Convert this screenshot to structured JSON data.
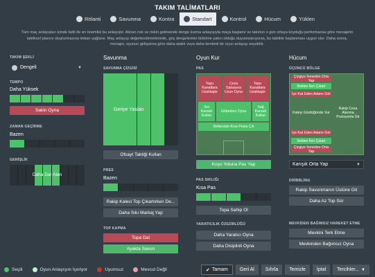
{
  "title": "TAKIM TALİMATLARI",
  "tabs": [
    {
      "label": "Rölanti",
      "icon": "gear-icon"
    },
    {
      "label": "Savunma",
      "icon": "shield-icon"
    },
    {
      "label": "Kontra",
      "icon": "arrows-icon"
    },
    {
      "label": "Standart",
      "icon": "target-icon",
      "active": true
    },
    {
      "label": "Kontrol",
      "icon": "ball-icon"
    },
    {
      "label": "Hücum",
      "icon": "sword-icon"
    },
    {
      "label": "Yüklen",
      "icon": "attack-icon"
    }
  ],
  "intro": "Tüm maç anlayışları içinde belli de en önemlisi bu anlayıştır. Alınan risk ve riskin getirisinde denge kurma anlayışıyla maça başlanır ve takımın o gün ortaya koyduğu performansa göre menajerin taktiksel planını oluşturmasına imkan sağlanır. Maç anlayışı değerlendirmelerinde, güç dengelerinin birbirine yakın olduğu duyumsanıyorsa, bu taktikle başlanması uygun olur. Daha sonra, menajer, oyunun gidişatına göre daha ataklı veya daha temkinli bir oyun anlayışı seçebilir.",
  "left": {
    "shape_label": "TAKIM ŞEKLİ",
    "shape_value": "Dengeli",
    "tempo_label": "TEMPO",
    "tempo_value": "Daha Yüksek",
    "tempo_level": 0.72,
    "tempo_button": "Sakin Oyna",
    "time_label": "ZAMAN GEÇİRME",
    "time_value": "Bazen",
    "width_label": "GENİŞLİK",
    "width_value": "Daha Dar Alan"
  },
  "defense": {
    "title": "Savunma",
    "line_label": "SAVUNMA ÇİZGİSİ",
    "line_value": "Geriye Yaslan",
    "offside_button": "Ofsayt Taktiği Kullan",
    "press_label": "PRES",
    "press_value": "Bazen",
    "press_level": 0.2,
    "press_btn1": "Rakip Kaleci Top Çıkartırken De...",
    "press_btn2": "Daha Sıkı Markaj Yap",
    "tackle_label": "TOP KAPMA",
    "tackle_btn1": "Topa Dal",
    "tackle_btn2": "Ayakta Savun"
  },
  "buildup": {
    "title": "Oyun Kur",
    "pass_label": "PAS",
    "zones": {
      "z1": "Topu Kanatlara Uzaklaştır",
      "z2": "Ceza Sahasına Uzun Oyna",
      "z3": "Topu Kanatlara Uzaklaştır",
      "z4": "Sol Kanadı Kullan",
      "z5": "Göbekten Oyna",
      "z6": "Sağ Kanadı Kullan",
      "z7": "Defanstan Kısa Pasla Çık"
    },
    "run_button": "Koşu Yoluna Pas Yap",
    "pass_length_label": "PAS SIKLIĞI",
    "pass_length_value": "Kısa Pas",
    "pass_length_alt": "Kısa Pas",
    "shown_value": "Kısa Pas",
    "freq_value": "Kısa Pas",
    "short_value": "Kısa Pas",
    "keep_label": "Kısa Pas",
    "sub_value": "Kısa Pas",
    "possession_value": "Kısa Pas",
    "pass_mode_value": "Kısa Pas",
    "mode": "Kısa Pas",
    "selected": "Kısa Pas",
    "value": "Kısa Pas",
    "level_value": "Kısa Pas",
    "possession_button": "Topa Sahip Ol",
    "creative_label": "YARATICILIK ÖZGÜRLÜĞÜ",
    "creative_btn1": "Daha Yaratıcı Oyna",
    "creative_btn2": "Daha Disiplinli Oyna"
  },
  "attack": {
    "title": "Hücum",
    "third_label": "ÜÇÜNCÜ BÖLGE",
    "zones": {
      "a1": "Çizgiye İnmeden Orta Yap",
      "a2": "Beklen İleri Çıkart",
      "a3": "İçe Kat Eden Adamı Gör",
      "a4": "Kaleyi Gördüğünde Vur",
      "a5": "Rakip Ceza Alanına Pozisyonla Gir",
      "a6": "İçe Kat Eden Adamı Gör",
      "a7": "Beklen İleri Çıkart",
      "a8": "Çizgiye İnmeden Orta Yap"
    },
    "cross_value": "Karışık Orta Yap",
    "dribble_label": "DRİBBLİNG",
    "dribble_btn1": "Rakip Savunmanın Üstüne Git",
    "dribble_btn2": "Daha Az Top Sür",
    "movement_label": "MEVKİDEN BAĞIMSIZ HAREKET ETME",
    "movement_btn1": "Mevkini Terk Etme",
    "movement_btn2": "Mevkinden Bağımsız Oyna"
  },
  "legend": [
    {
      "label": "Seçili",
      "color": "#4ec26a"
    },
    {
      "label": "Oyun Anlayışını İçeriyor",
      "color": "#c7f0c9"
    },
    {
      "label": "Uyumsuz",
      "color": "#c0392b"
    },
    {
      "label": "Mevcut Değil",
      "color": "#e8a0a8"
    }
  ],
  "footer": {
    "done": "Tamam",
    "undo": "Geri Al",
    "reset": "Sıfırla",
    "clear": "Temizle",
    "cancel": "İptal",
    "prefs": "Tercihler..."
  }
}
